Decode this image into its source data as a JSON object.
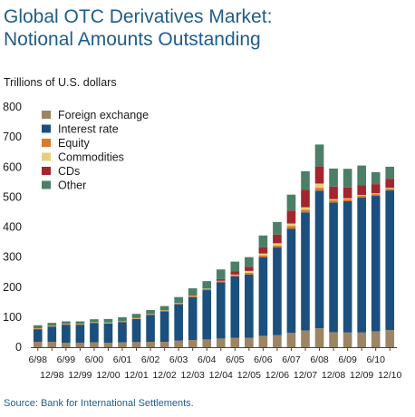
{
  "chart_data": {
    "type": "bar",
    "stacked": true,
    "title": "Global OTC Derivatives Market:\nNotional Amounts Outstanding",
    "unit_label": "Trillions of U.S. dollars",
    "ylim": [
      0,
      800
    ],
    "yticks": [
      0,
      100,
      200,
      300,
      400,
      500,
      600,
      700,
      800
    ],
    "categories": [
      "6/98",
      "12/98",
      "6/99",
      "12/99",
      "6/00",
      "12/00",
      "6/01",
      "12/01",
      "6/02",
      "12/02",
      "6/03",
      "12/03",
      "6/04",
      "12/04",
      "6/05",
      "12/05",
      "6/06",
      "12/06",
      "6/07",
      "12/07",
      "6/08",
      "12/08",
      "6/09",
      "12/09",
      "6/10",
      "12/10"
    ],
    "x_labels_top": [
      "6/98",
      "6/99",
      "6/00",
      "6/01",
      "6/02",
      "6/03",
      "6/04",
      "6/05",
      "6/06",
      "6/07",
      "6/08",
      "6/09",
      "6/10"
    ],
    "x_labels_bottom": [
      "12/98",
      "12/99",
      "12/00",
      "12/01",
      "12/02",
      "12/03",
      "12/04",
      "12/05",
      "12/06",
      "12/07",
      "12/08",
      "12/09",
      "12/10"
    ],
    "series": [
      {
        "name": "Foreign exchange",
        "color": "#9c8464",
        "values": [
          18,
          18,
          15,
          15,
          16,
          15,
          16,
          17,
          18,
          18,
          22,
          24,
          26,
          29,
          31,
          31,
          38,
          40,
          48,
          56,
          63,
          50,
          49,
          49,
          53,
          57
        ]
      },
      {
        "name": "Interest rate",
        "color": "#1b4f7e",
        "values": [
          42,
          50,
          60,
          60,
          64,
          64,
          67,
          77,
          89,
          101,
          121,
          142,
          164,
          187,
          205,
          211,
          262,
          292,
          347,
          393,
          458,
          432,
          437,
          449,
          451,
          465
        ]
      },
      {
        "name": "Equity",
        "color": "#d9792b",
        "values": [
          2,
          2,
          2,
          2,
          2,
          2,
          2,
          2,
          2,
          3,
          3,
          4,
          4,
          4,
          4,
          6,
          6,
          7,
          9,
          9,
          10,
          7,
          7,
          6,
          6,
          6
        ]
      },
      {
        "name": "Commodities",
        "color": "#e6cf7c",
        "values": [
          1,
          1,
          1,
          1,
          1,
          1,
          1,
          1,
          1,
          1,
          1,
          1,
          1,
          1,
          2,
          6,
          6,
          7,
          8,
          8,
          14,
          4,
          3,
          3,
          3,
          3
        ]
      },
      {
        "name": "CDs",
        "color": "#a3262d",
        "values": [
          0,
          0,
          0,
          0,
          0,
          0,
          0,
          0,
          0,
          0,
          0,
          0,
          0,
          6,
          10,
          14,
          20,
          29,
          43,
          58,
          57,
          42,
          36,
          33,
          30,
          30
        ]
      },
      {
        "name": "Other",
        "color": "#4c7e68",
        "values": [
          10,
          10,
          8,
          8,
          10,
          12,
          14,
          14,
          14,
          14,
          20,
          25,
          25,
          32,
          33,
          32,
          40,
          42,
          53,
          62,
          73,
          60,
          62,
          65,
          40,
          40
        ]
      }
    ],
    "legend": {
      "placement": "top-left"
    },
    "grid": false,
    "source": "Source: Bank for International Settlements."
  }
}
